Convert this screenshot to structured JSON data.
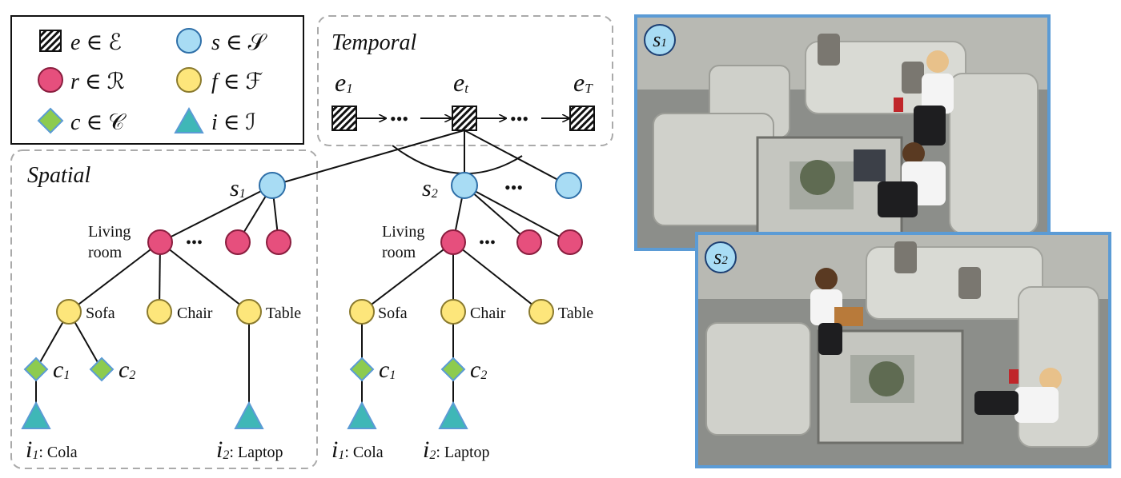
{
  "legend": {
    "items": [
      {
        "shape": "hatched-square",
        "sym": "e",
        "set": "ℰ"
      },
      {
        "shape": "circle",
        "sym": "s",
        "set": "𝒮",
        "color": "#a8dcf4"
      },
      {
        "shape": "circle",
        "sym": "r",
        "set": "ℛ",
        "color": "#e64f7d"
      },
      {
        "shape": "circle",
        "sym": "f",
        "set": "ℱ",
        "color": "#fde67b"
      },
      {
        "shape": "diamond",
        "sym": "c",
        "set": "𝒞",
        "color": "#8dcb4f"
      },
      {
        "shape": "triangle",
        "sym": "i",
        "set": "ℐ",
        "color": "#3fb7b7"
      }
    ]
  },
  "temporal": {
    "title": "Temporal",
    "events": [
      {
        "sym": "e",
        "sub": "1"
      },
      {
        "sym": "e",
        "sub": "t"
      },
      {
        "sym": "e",
        "sub": "T"
      }
    ],
    "dots": "•••"
  },
  "spatial": {
    "title": "Spatial"
  },
  "trees": [
    {
      "scene": {
        "sym": "s",
        "sub": "1"
      },
      "room": "Living room",
      "room_line1": "Living",
      "room_line2": "room",
      "dots": "•••",
      "furniture": [
        "Sofa",
        "Chair",
        "Table"
      ],
      "contacts": [
        {
          "sym": "c",
          "sub": "1"
        },
        {
          "sym": "c",
          "sub": "2"
        }
      ],
      "items": [
        {
          "sym": "i",
          "sub": "1",
          "label": ": Cola"
        },
        {
          "sym": "i",
          "sub": "2",
          "label": ": Laptop"
        }
      ]
    },
    {
      "scene": {
        "sym": "s",
        "sub": "2"
      },
      "room": "Living room",
      "room_line1": "Living",
      "room_line2": "room",
      "dots": "•••",
      "furniture": [
        "Sofa",
        "Chair",
        "Table"
      ],
      "contacts": [
        {
          "sym": "c",
          "sub": "1"
        },
        {
          "sym": "c",
          "sub": "2"
        }
      ],
      "items": [
        {
          "sym": "i",
          "sub": "1",
          "label": ": Cola"
        },
        {
          "sym": "i",
          "sub": "2",
          "label": ": Laptop"
        }
      ]
    }
  ],
  "scene_dots": "•••",
  "panels": [
    {
      "sym": "s",
      "sub": "1"
    },
    {
      "sym": "s",
      "sub": "2"
    }
  ],
  "colors": {
    "scene": "#a8dcf4",
    "room": "#e64f7d",
    "furniture": "#fde67b",
    "contact": "#8dcb4f",
    "item": "#3fb7b7",
    "panel_border": "#5b9bd5"
  }
}
